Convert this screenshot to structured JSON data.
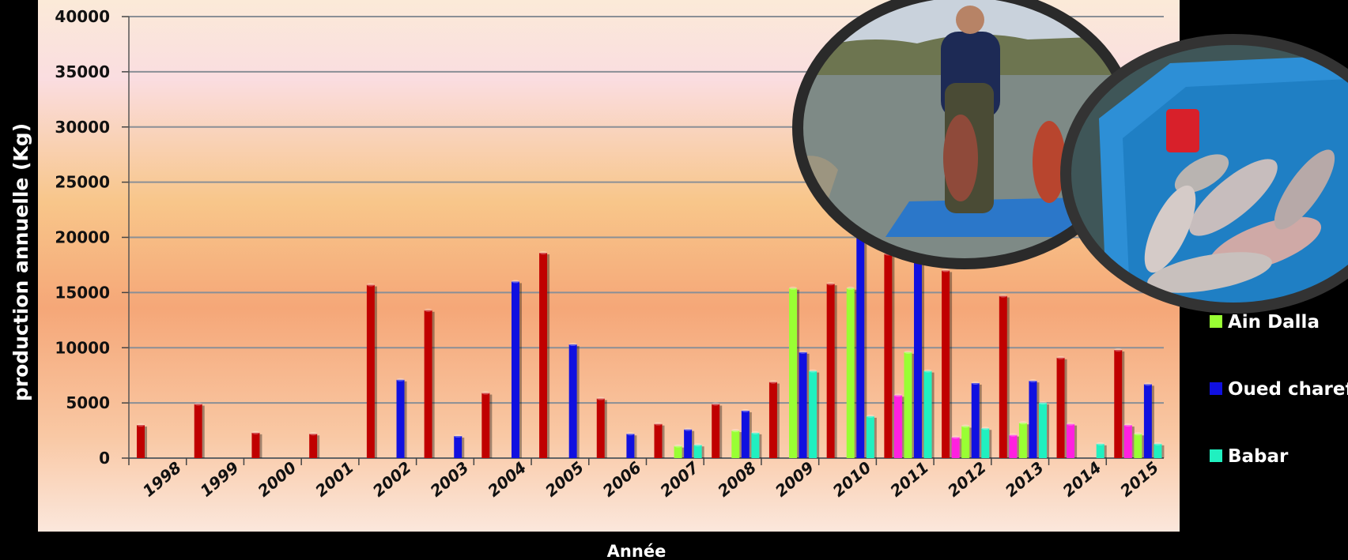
{
  "chart_data": {
    "type": "bar",
    "title": "",
    "xlabel": "Année",
    "ylabel": "production annuelle (Kg)",
    "ylim": [
      0,
      40000
    ],
    "yticks": [
      0,
      5000,
      10000,
      15000,
      20000,
      25000,
      30000,
      35000,
      40000
    ],
    "grid": true,
    "legend_position": "right",
    "categories": [
      "1998",
      "1999",
      "2000",
      "2001",
      "2002",
      "2003",
      "2004",
      "2005",
      "2006",
      "2007",
      "2008",
      "2009",
      "2010",
      "2011",
      "2012",
      "2013",
      "2014",
      "2015"
    ],
    "series": [
      {
        "color": "#c00000",
        "values": [
          3000,
          4900,
          2300,
          2200,
          15700,
          13400,
          5900,
          18600,
          5400,
          3100,
          4900,
          6900,
          15800,
          18500,
          17000,
          14700,
          9100,
          9800
        ]
      },
      {
        "color": "#ff20e0",
        "values": [
          0,
          0,
          0,
          0,
          0,
          0,
          0,
          0,
          0,
          0,
          0,
          0,
          0,
          5700,
          1900,
          2100,
          3100,
          3000
        ]
      },
      {
        "name": "Ain Dalla",
        "color": "#99ff33",
        "values": [
          0,
          0,
          0,
          0,
          0,
          0,
          0,
          0,
          0,
          1100,
          2500,
          15400,
          15400,
          9600,
          2900,
          3200,
          0,
          2200
        ]
      },
      {
        "name": "Oued charef",
        "color": "#1010e0",
        "values": [
          0,
          0,
          0,
          0,
          7100,
          2000,
          16000,
          10300,
          2200,
          2600,
          4300,
          9600,
          21000,
          18500,
          6800,
          7000,
          0,
          6700
        ]
      },
      {
        "name": "Babar",
        "color": "#20f0c0",
        "values": [
          0,
          0,
          0,
          0,
          0,
          0,
          0,
          0,
          0,
          1200,
          2300,
          7900,
          3800,
          7900,
          2700,
          5000,
          1300,
          1300
        ]
      }
    ]
  }
}
